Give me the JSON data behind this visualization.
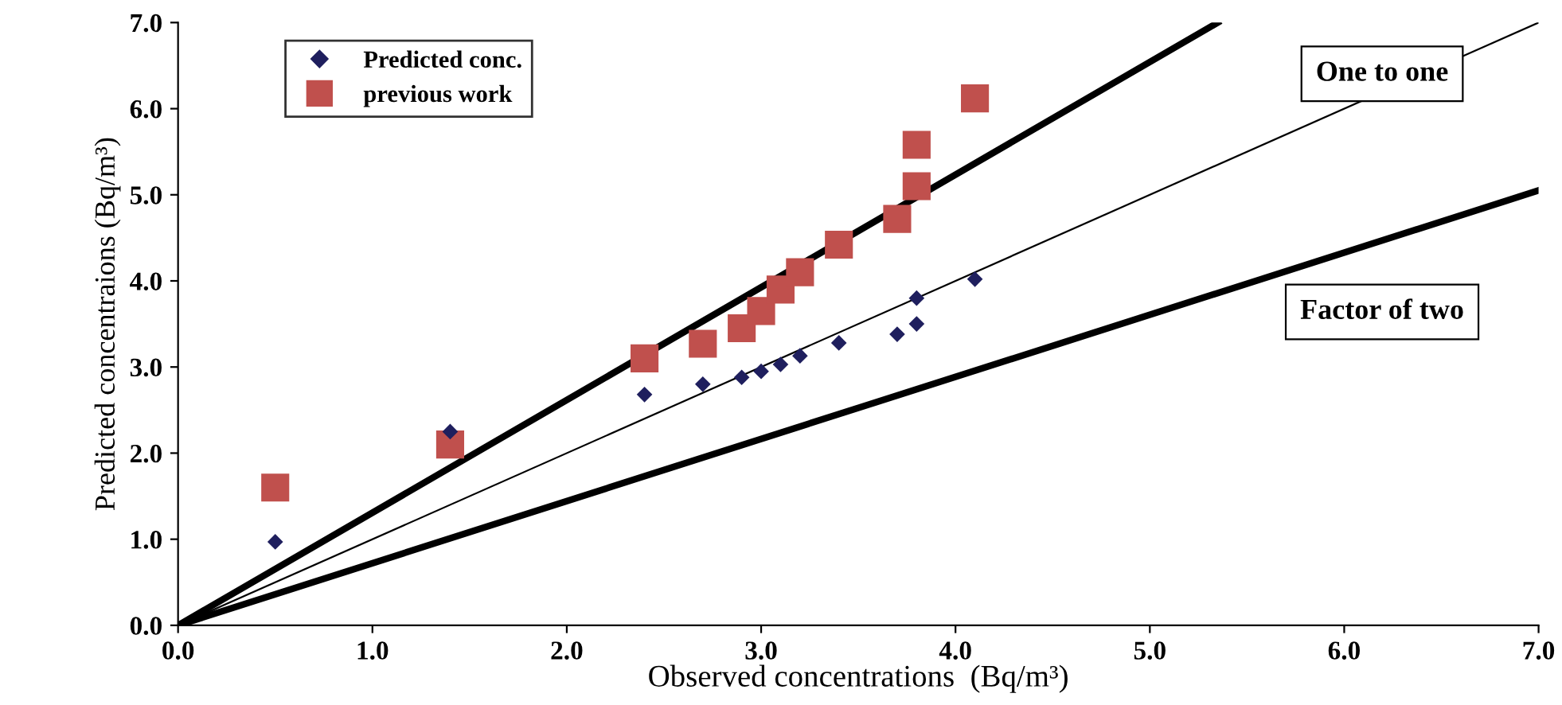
{
  "chart_data": {
    "type": "scatter",
    "xlabel": "Observed concentrations  (Bq/m³)",
    "ylabel": "Predicted concentraions (Bq/m³)",
    "xlim": [
      0,
      7
    ],
    "ylim": [
      0,
      7
    ],
    "xticks": [
      {
        "value": 0,
        "label": "0.0"
      },
      {
        "value": 1,
        "label": "1.0"
      },
      {
        "value": 2,
        "label": "2.0"
      },
      {
        "value": 3,
        "label": "3.0"
      },
      {
        "value": 4,
        "label": "4.0"
      },
      {
        "value": 5,
        "label": "5.0"
      },
      {
        "value": 6,
        "label": "6.0"
      },
      {
        "value": 7,
        "label": "7.0"
      }
    ],
    "yticks": [
      {
        "value": 0,
        "label": "0.0"
      },
      {
        "value": 1,
        "label": "1.0"
      },
      {
        "value": 2,
        "label": "2.0"
      },
      {
        "value": 3,
        "label": "3.0"
      },
      {
        "value": 4,
        "label": "4.0"
      },
      {
        "value": 5,
        "label": "5.0"
      },
      {
        "value": 6,
        "label": "6.0"
      },
      {
        "value": 7,
        "label": "7.0"
      }
    ],
    "grid": false,
    "legend": "top left",
    "annotations": [
      "One to one",
      "Factor of two"
    ],
    "series": [
      {
        "name": "Predicted conc.",
        "color": "#1f1f5e",
        "marker": "diamond",
        "x": [
          0.5,
          1.4,
          2.4,
          2.7,
          2.9,
          3.0,
          3.1,
          3.2,
          3.4,
          3.7,
          3.8,
          3.8,
          4.1
        ],
        "values": [
          0.97,
          2.25,
          2.68,
          2.8,
          2.88,
          2.95,
          3.03,
          3.13,
          3.28,
          3.38,
          3.5,
          3.8,
          4.02
        ]
      },
      {
        "name": "previous work",
        "color": "#c0504d",
        "marker": "square",
        "x": [
          0.5,
          1.4,
          2.4,
          2.7,
          2.9,
          3.0,
          3.1,
          3.2,
          3.4,
          3.7,
          3.8,
          3.8,
          4.1
        ],
        "values": [
          1.6,
          2.1,
          3.1,
          3.27,
          3.45,
          3.65,
          3.9,
          4.1,
          4.42,
          4.72,
          5.1,
          5.58,
          6.12
        ]
      },
      {
        "type": "line",
        "color": "#000000",
        "marker": "none",
        "x": [
          0,
          5.35
        ],
        "values": [
          0,
          7
        ]
      },
      {
        "type": "line",
        "color": "#000000",
        "marker": "none",
        "x": [
          0,
          7
        ],
        "values": [
          0,
          7
        ]
      },
      {
        "type": "line",
        "color": "#000000",
        "marker": "none",
        "x": [
          0,
          7
        ],
        "values": [
          0,
          5.05
        ]
      }
    ]
  }
}
